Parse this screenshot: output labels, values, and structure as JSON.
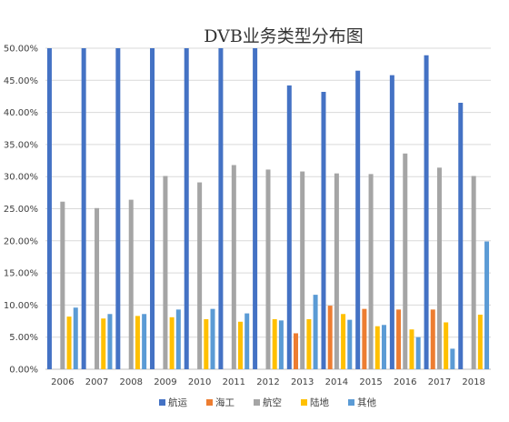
{
  "chart_data": {
    "type": "bar",
    "title": "DVB业务类型分布图",
    "xlabel": "",
    "ylabel": "",
    "categories": [
      "2006",
      "2007",
      "2008",
      "2009",
      "2010",
      "2011",
      "2012",
      "2013",
      "2014",
      "2015",
      "2016",
      "2017",
      "2018"
    ],
    "ylim": [
      0,
      50
    ],
    "yticks": [
      "0.00%",
      "5.00%",
      "10.00%",
      "15.00%",
      "20.00%",
      "25.00%",
      "30.00%",
      "35.00%",
      "40.00%",
      "45.00%",
      "50.00%"
    ],
    "grid": true,
    "legend_position": "bottom",
    "series": [
      {
        "name": "航运",
        "color": "#4472c4",
        "values": [
          50,
          50,
          50,
          50,
          50,
          50,
          50,
          44.2,
          43.2,
          46.5,
          45.8,
          48.9,
          41.5
        ]
      },
      {
        "name": "海工",
        "color": "#ed7d31",
        "values": [
          0,
          0,
          0,
          0,
          0,
          0,
          0,
          5.6,
          9.9,
          9.4,
          9.3,
          9.3,
          0
        ]
      },
      {
        "name": "航空",
        "color": "#a5a5a5",
        "values": [
          26.1,
          25.1,
          26.4,
          30.1,
          29.1,
          31.8,
          31.1,
          30.8,
          30.5,
          30.4,
          33.6,
          31.4,
          30.1
        ]
      },
      {
        "name": "陆地",
        "color": "#ffc000",
        "values": [
          8.2,
          7.9,
          8.3,
          8.1,
          7.8,
          7.4,
          7.8,
          7.8,
          8.6,
          6.7,
          6.2,
          7.3,
          8.5
        ]
      },
      {
        "name": "其他",
        "color": "#5b9bd5",
        "values": [
          9.6,
          8.6,
          8.6,
          9.3,
          9.4,
          8.7,
          7.6,
          11.6,
          7.7,
          6.9,
          5.0,
          3.2,
          19.9
        ]
      }
    ]
  }
}
